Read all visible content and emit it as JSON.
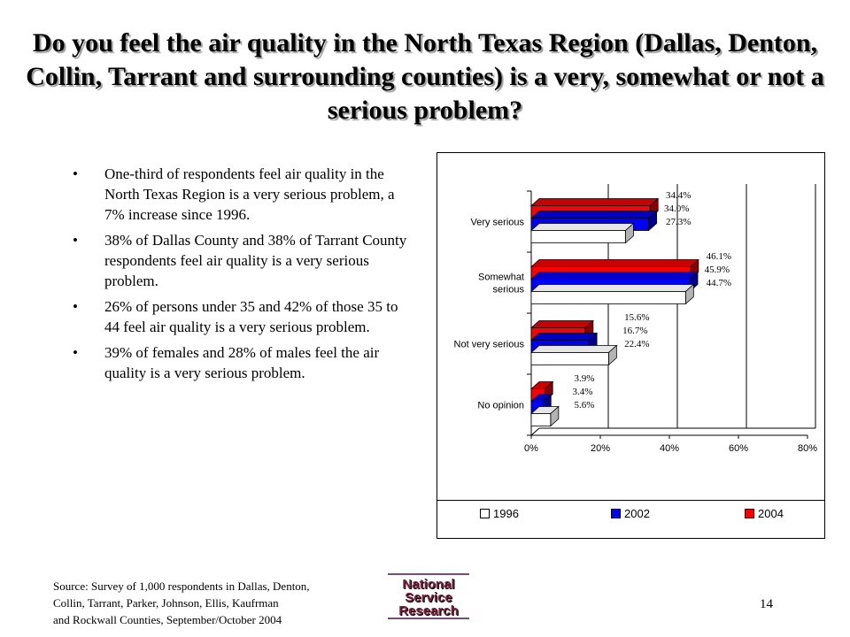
{
  "title": "Do you feel the air quality in the North Texas Region (Dallas, Denton, Collin, Tarrant and surrounding counties) is a very, somewhat or not a serious problem?",
  "bullets": [
    "One-third of respondents feel air quality in the North Texas Region is a very serious problem, a 7% increase since 1996.",
    "38% of Dallas County and 38% of Tarrant County respondents feel air quality is a very serious problem.",
    "26% of persons under 35 and 42% of those 35 to 44 feel air quality is a very serious problem.",
    "39% of females and 28% of males feel the air quality is a very serious problem."
  ],
  "bullet_symbol": "•",
  "source": {
    "line1": "Source: Survey of 1,000 respondents in Dallas, Denton,",
    "line2": "Collin, Tarrant, Parker, Johnson, Ellis, Kaufrman",
    "line3": "and Rockwall Counties, September/October 2004"
  },
  "logo": {
    "line1": "National",
    "line2": "Service",
    "line3": "Research"
  },
  "page_number": "14",
  "colors": {
    "s1996": "#ffffff",
    "s2002": "#0000ff",
    "s2004": "#ff0000",
    "grid": "#000000"
  },
  "chart_data": {
    "type": "bar",
    "orientation": "horizontal",
    "categories": [
      "Very serious",
      "Somewhat serious",
      "Not very serious",
      "No opinion"
    ],
    "category_lines": [
      [
        "Very serious"
      ],
      [
        "Somewhat",
        "serious"
      ],
      [
        "Not very serious"
      ],
      [
        "No opinion"
      ]
    ],
    "series": [
      {
        "name": "2004",
        "values": [
          34.4,
          46.1,
          15.6,
          3.9
        ],
        "labels": [
          "34.4%",
          "46.1%",
          "15.6%",
          "3.9%"
        ]
      },
      {
        "name": "2002",
        "values": [
          34.0,
          45.9,
          16.7,
          3.4
        ],
        "labels": [
          "34.0%",
          "45.9%",
          "16.7%",
          "3.4%"
        ]
      },
      {
        "name": "1996",
        "values": [
          27.3,
          44.7,
          22.4,
          5.6
        ],
        "labels": [
          "27.3%",
          "44.7%",
          "22.4%",
          "5.6%"
        ]
      }
    ],
    "xlim": [
      0,
      80
    ],
    "xticks": [
      0,
      20,
      40,
      60,
      80
    ],
    "xtick_labels": [
      "0%",
      "20%",
      "40%",
      "60%",
      "80%"
    ],
    "legend": [
      "1996",
      "2002",
      "2004"
    ],
    "legend_position": "bottom",
    "grid": "vertical"
  }
}
